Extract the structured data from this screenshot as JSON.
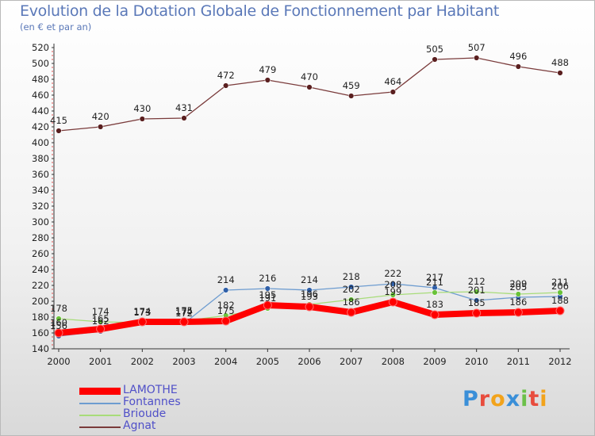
{
  "title": "Evolution de la Dotation Globale de Fonctionnement par Habitant",
  "subtitle": "(en € et par an)",
  "brand": "Proxiti",
  "chart_data": {
    "type": "line",
    "title": "Evolution de la Dotation Globale de Fonctionnement par Habitant",
    "subtitle": "(en € et par an)",
    "xlabel": "",
    "ylabel": "",
    "ylim": [
      140,
      520
    ],
    "ytick_step": 20,
    "grid": false,
    "legend_position": "bottom-left",
    "x": [
      "2000",
      "2001",
      "2002",
      "2003",
      "2004",
      "2005",
      "2006",
      "2007",
      "2008",
      "2009",
      "2010",
      "2011",
      "2012"
    ],
    "series": [
      {
        "name": "Agnat",
        "color": "#7a3b3b",
        "marker": "#5a1f1f",
        "width": 1.3,
        "values": [
          415,
          420,
          430,
          431,
          472,
          479,
          470,
          459,
          464,
          505,
          507,
          496,
          488
        ]
      },
      {
        "name": "Fontannes",
        "color": "#6d9cd0",
        "marker": "#2f5fa8",
        "width": 1.3,
        "values": [
          156,
          162,
          174,
          172,
          214,
          216,
          214,
          218,
          222,
          217,
          201,
          205,
          206
        ]
      },
      {
        "name": "Brioude",
        "color": "#a8dc7a",
        "marker": "#69c238",
        "width": 1.3,
        "values": [
          178,
          174,
          173,
          175,
          182,
          191,
          196,
          202,
          208,
          211,
          212,
          209,
          211
        ]
      },
      {
        "name": "LAMOTHE",
        "color": "#ff0000",
        "marker": "#ff0000",
        "width": 8,
        "values": [
          160,
          165,
          174,
          174,
          175,
          195,
          193,
          186,
          199,
          183,
          185,
          186,
          188
        ]
      }
    ]
  },
  "legend": [
    {
      "name": "LAMOTHE",
      "color": "#ff0000"
    },
    {
      "name": "Fontannes",
      "color": "#6d9cd0"
    },
    {
      "name": "Brioude",
      "color": "#a8dc7a"
    },
    {
      "name": "Agnat",
      "color": "#7a3b3b"
    }
  ]
}
